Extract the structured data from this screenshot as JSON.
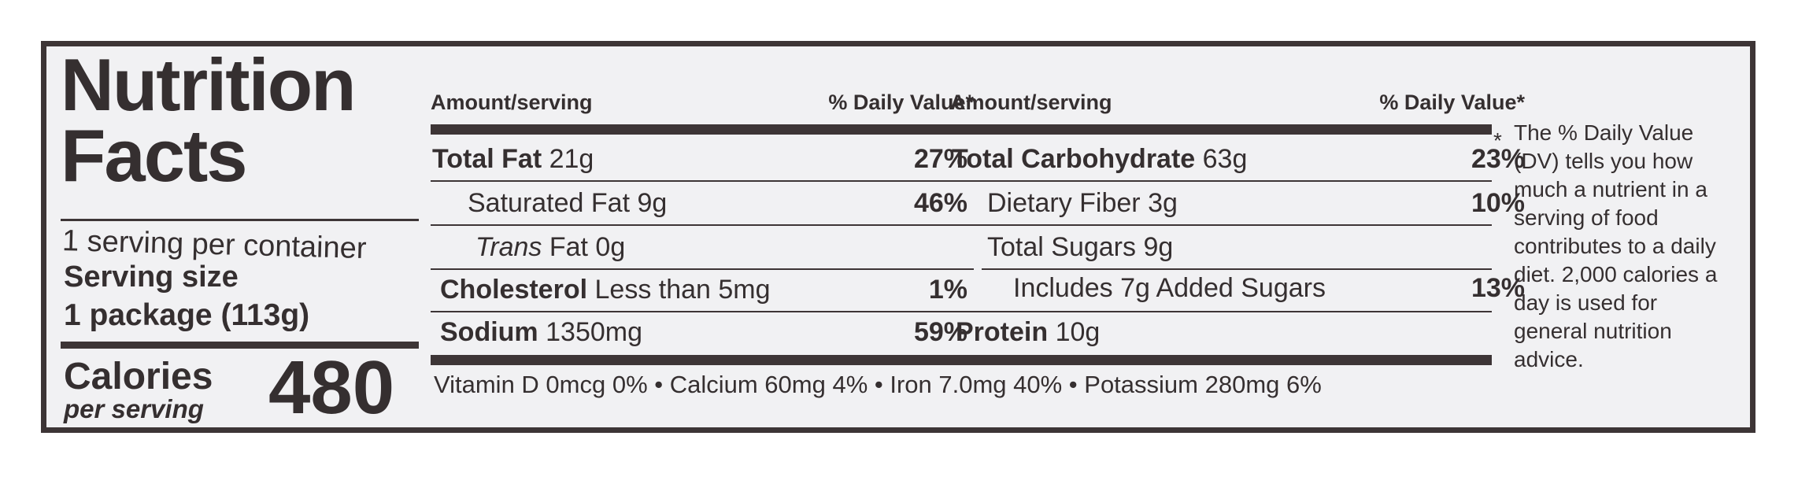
{
  "title_line1": "Nutrition",
  "title_line2": "Facts",
  "servings_per_container": "1 serving per container",
  "serving_size_label": "Serving size",
  "serving_size_value": "1 package (113g)",
  "calories_label": "Calories",
  "calories_sub": "per serving",
  "calories_value": "480",
  "left_col": {
    "amount_header": "Amount/serving",
    "dv_header": "% Daily Value*",
    "rows": [
      {
        "name": "Total Fat",
        "amount": "21g",
        "dv": "27%"
      },
      {
        "name": "Saturated Fat",
        "amount": "9g",
        "dv": "46%"
      },
      {
        "name": "Trans",
        "amount": "Fat 0g",
        "dv": ""
      },
      {
        "name": "Cholesterol",
        "amount": "Less than 5mg",
        "dv": "1%"
      },
      {
        "name": "Sodium",
        "amount": "1350mg",
        "dv": "59%"
      }
    ]
  },
  "right_col": {
    "amount_header": "Amount/serving",
    "dv_header": "% Daily Value*",
    "rows": [
      {
        "name": "Total Carbohydrate",
        "amount": "63g",
        "dv": "23%"
      },
      {
        "name": "Dietary Fiber",
        "amount": "3g",
        "dv": "10%"
      },
      {
        "name": "Total Sugars",
        "amount": "9g",
        "dv": ""
      },
      {
        "name": "Includes 7g Added Sugars",
        "amount": "",
        "dv": "13%"
      },
      {
        "name": "Protein",
        "amount": "10g",
        "dv": ""
      }
    ]
  },
  "vitamins_line": "Vitamin D 0mcg 0% • Calcium 60mg 4% • Iron 7.0mg 40% • Potassium 280mg 6%",
  "footnote_star": "*",
  "footnote": "The % Daily Value (DV) tells you how much a nutrient in a serving of food contributes to a daily diet. 2,000 calories a day is used for general nutrition advice."
}
